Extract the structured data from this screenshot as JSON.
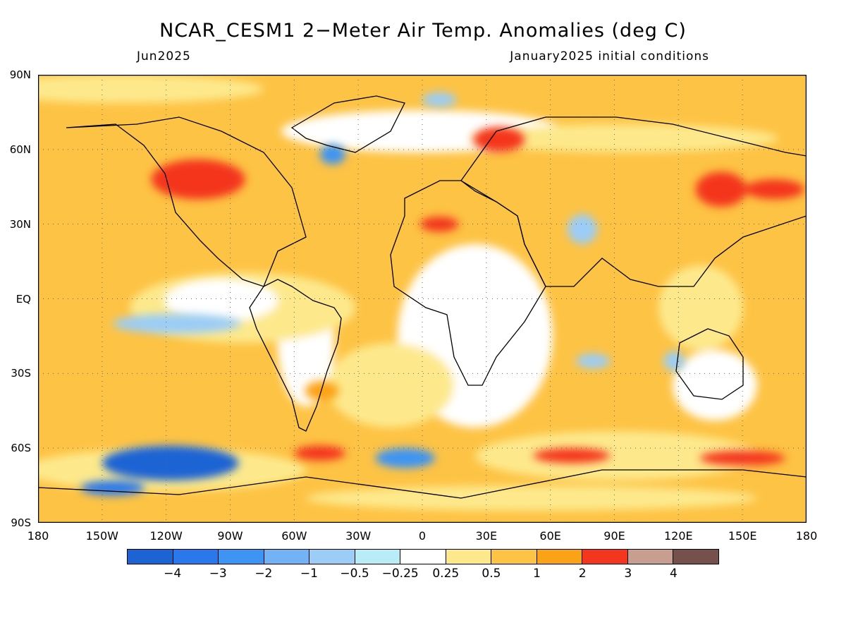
{
  "header": {
    "title": "NCAR_CESM1 2−Meter Air Temp. Anomalies (deg C)",
    "target_month": "Jun2025",
    "init_conditions": "January2025 initial conditions"
  },
  "map": {
    "lat_labels": [
      "90N",
      "60N",
      "30N",
      "EQ",
      "30S",
      "60S",
      "90S"
    ],
    "lat_values": [
      90,
      60,
      30,
      0,
      -30,
      -60,
      -90
    ],
    "lon_labels": [
      "180",
      "150W",
      "120W",
      "90W",
      "60W",
      "30W",
      "0",
      "30E",
      "60E",
      "90E",
      "120E",
      "150E",
      "180"
    ],
    "lon_values": [
      -180,
      -150,
      -120,
      -90,
      -60,
      -30,
      0,
      30,
      60,
      90,
      120,
      150,
      180
    ],
    "anomaly_regions": [
      {
        "name": "western-us-warm",
        "lon": -105,
        "lat": 48,
        "rx": 22,
        "ry": 8,
        "level": 3
      },
      {
        "name": "european-russia-warm",
        "lon": 36,
        "lat": 64,
        "rx": 12,
        "ry": 5,
        "level": 3
      },
      {
        "name": "sahara-warm",
        "lon": 8,
        "lat": 30,
        "rx": 9,
        "ry": 3,
        "level": 3
      },
      {
        "name": "east-asia-warm",
        "lon": 140,
        "lat": 44,
        "rx": 12,
        "ry": 7,
        "level": 3
      },
      {
        "name": "north-pacific-warm",
        "lon": 165,
        "lat": 44,
        "rx": 14,
        "ry": 4,
        "level": 3
      },
      {
        "name": "south-pacific-cold",
        "lon": -118,
        "lat": -66,
        "rx": 32,
        "ry": 7,
        "level": -4
      },
      {
        "name": "amundsen-cold",
        "lon": -145,
        "lat": -76,
        "rx": 15,
        "ry": 3,
        "level": -3
      },
      {
        "name": "south-atlantic-cold",
        "lon": -8,
        "lat": -64,
        "rx": 14,
        "ry": 4,
        "level": -2
      },
      {
        "name": "greenland-sea-cold",
        "lon": -42,
        "lat": 58,
        "rx": 6,
        "ry": 4,
        "level": -2
      },
      {
        "name": "india-cold",
        "lon": 75,
        "lat": 28,
        "rx": 7,
        "ry": 6,
        "level": -1
      },
      {
        "name": "tropical-pacific-cool",
        "lon": -115,
        "lat": -10,
        "rx": 30,
        "ry": 4,
        "level": -1
      },
      {
        "name": "west-australia-cool",
        "lon": 118,
        "lat": -25,
        "rx": 5,
        "ry": 4,
        "level": -1
      },
      {
        "name": "south-indian-cool",
        "lon": 80,
        "lat": -25,
        "rx": 8,
        "ry": 3,
        "level": -1
      },
      {
        "name": "antarctic-atlantic-warm",
        "lon": -48,
        "lat": -62,
        "rx": 12,
        "ry": 3,
        "level": 3
      },
      {
        "name": "antarctic-indian-warm",
        "lon": 70,
        "lat": -63,
        "rx": 18,
        "ry": 3,
        "level": 3
      },
      {
        "name": "antarctic-pacific-warm",
        "lon": 150,
        "lat": -64,
        "rx": 20,
        "ry": 3,
        "level": 3
      },
      {
        "name": "arctic-cold",
        "lon": 8,
        "lat": 80,
        "rx": 8,
        "ry": 3,
        "level": -1
      },
      {
        "name": "south-america-warm",
        "lon": -47,
        "lat": -37,
        "rx": 8,
        "ry": 4,
        "level": 2
      }
    ]
  },
  "colorbar": {
    "colors": [
      "#1c63d4",
      "#2a78eb",
      "#3d94f3",
      "#73b2f4",
      "#9bcdf6",
      "#b8ecf7",
      "#ffffff",
      "#fde98c",
      "#fdc344",
      "#fba316",
      "#f4361e",
      "#c79e8f",
      "#76514b"
    ],
    "labels": [
      "−4",
      "−3",
      "−2",
      "−1",
      "−0.5",
      "−0.25",
      "0.25",
      "0.5",
      "1",
      "2",
      "3",
      "4"
    ]
  }
}
